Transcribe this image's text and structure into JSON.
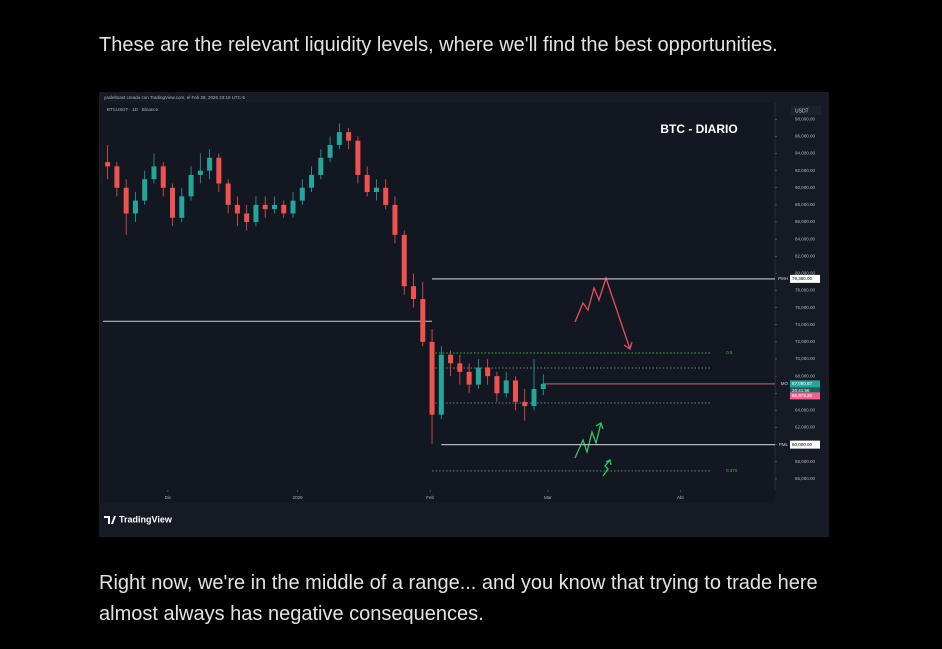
{
  "paragraphs": [
    "These are the relevant liquidity levels, where we'll find the best opportunities.",
    "Right now, we're in the middle of a range... and you know that trying to trade here almost always has negative consequences."
  ],
  "chart_data": {
    "type": "candlestick",
    "attribution": "yasleltoast creado con TradingView.com, el Feb 28, 2026 23:18 UTC-5",
    "symbol": "BTCUSDT · 1D · Binance",
    "currency": "USDT",
    "title": "BTC - DIARIO",
    "brand": "TradingView",
    "up_color": "#26a69a",
    "down_color": "#ef5350",
    "open": [
      93000,
      92500,
      90000,
      87000,
      88500,
      91000,
      92500,
      90000,
      86500,
      89000,
      91500,
      92000,
      93500,
      90500,
      88000,
      87000,
      86000,
      88000,
      87500,
      88000,
      87000,
      88500,
      90000,
      91500,
      93500,
      95000,
      96500,
      95500,
      91500,
      89500,
      90000,
      88000,
      84500,
      78500,
      77000,
      72000,
      63500,
      70500,
      69500,
      68500,
      67000,
      69000,
      68000,
      66000,
      67500,
      65000,
      64500,
      66500
    ],
    "high": [
      95000,
      93000,
      91000,
      89500,
      92000,
      94000,
      93000,
      90500,
      90000,
      92500,
      94000,
      94500,
      94000,
      91000,
      89000,
      88000,
      89000,
      89000,
      89000,
      88500,
      89500,
      91000,
      92500,
      94500,
      96000,
      97500,
      97000,
      96000,
      92500,
      91000,
      91000,
      89000,
      85000,
      80000,
      79000,
      73500,
      71500,
      71000,
      70500,
      69500,
      70000,
      70000,
      68500,
      68500,
      68000,
      66500,
      70000,
      68200
    ],
    "low": [
      91000,
      89000,
      84500,
      86000,
      88000,
      90500,
      89000,
      85500,
      86000,
      88500,
      90500,
      91000,
      89500,
      87000,
      85500,
      85000,
      85500,
      86500,
      87000,
      86500,
      86500,
      88000,
      89500,
      91000,
      93000,
      94500,
      94500,
      90500,
      89000,
      88500,
      87500,
      83500,
      77500,
      76000,
      71500,
      60100,
      63000,
      68000,
      67000,
      66000,
      66500,
      67000,
      65000,
      65500,
      64000,
      62800,
      64000,
      65800
    ],
    "close": [
      92500,
      90000,
      87000,
      88500,
      91000,
      92500,
      90000,
      86500,
      89000,
      91500,
      92000,
      93500,
      90500,
      88000,
      87000,
      86000,
      88000,
      87500,
      88000,
      87000,
      88500,
      90000,
      91500,
      93500,
      95000,
      96500,
      95500,
      91500,
      89500,
      90000,
      88000,
      84500,
      78500,
      77000,
      72000,
      63500,
      70500,
      69500,
      68500,
      67000,
      69000,
      68000,
      66000,
      67500,
      65000,
      64500,
      66500,
      67090.67
    ],
    "xlim": [
      -0.5,
      72
    ],
    "xticks": [
      {
        "value": 6.5,
        "label": "Dic"
      },
      {
        "value": 20.5,
        "label": "2026"
      },
      {
        "value": 34.8,
        "label": "Feb"
      },
      {
        "value": 47.5,
        "label": "Mar"
      },
      {
        "value": 61.8,
        "label": "Abr"
      }
    ],
    "ylim": [
      54700,
      99900
    ],
    "yticks": [
      {
        "value": 56000,
        "label": "56,000.00"
      },
      {
        "value": 58000,
        "label": "58,000.00"
      },
      {
        "value": 60000,
        "label": "60,000.00"
      },
      {
        "value": 62000,
        "label": "62,000.00"
      },
      {
        "value": 64000,
        "label": "64,000.00"
      },
      {
        "value": 66000,
        "label": "66,000.00"
      },
      {
        "value": 68000,
        "label": "68,000.00"
      },
      {
        "value": 70000,
        "label": "70,000.00"
      },
      {
        "value": 72000,
        "label": "72,000.00"
      },
      {
        "value": 74000,
        "label": "74,000.00"
      },
      {
        "value": 76000,
        "label": "76,000.00"
      },
      {
        "value": 78000,
        "label": "78,000.00"
      },
      {
        "value": 80000,
        "label": "80,000.00"
      },
      {
        "value": 82000,
        "label": "82,000.00"
      },
      {
        "value": 84000,
        "label": "84,000.00"
      },
      {
        "value": 86000,
        "label": "86,000.00"
      },
      {
        "value": 88000,
        "label": "88,000.00"
      },
      {
        "value": 90000,
        "label": "90,000.00"
      },
      {
        "value": 92000,
        "label": "92,000.00"
      },
      {
        "value": 94000,
        "label": "94,000.00"
      },
      {
        "value": 96000,
        "label": "96,000.00"
      },
      {
        "value": 98000,
        "label": "98,000.00"
      }
    ],
    "levels": [
      {
        "value": 74400,
        "color": "#b2b5be",
        "style": "solid",
        "range": [
          -0.5,
          35
        ]
      },
      {
        "name": "PMH",
        "value": 79360,
        "value_label": "79,360.00",
        "color": "#b2b5be",
        "style": "solid",
        "range": [
          35,
          72
        ]
      },
      {
        "name": "PML",
        "value": 60000,
        "value_label": "60,000.00",
        "color": "#b2b5be",
        "style": "solid",
        "range": [
          36,
          72
        ]
      },
      {
        "name": "0.5",
        "value": 70700,
        "color": "#4caf50",
        "style": "dotted",
        "range": [
          35,
          65
        ]
      },
      {
        "value": 68950,
        "color": "#787b86",
        "style": "dotted",
        "range": [
          35,
          65
        ]
      },
      {
        "value": 64860,
        "color": "#787b86",
        "style": "dotted",
        "range": [
          35,
          65
        ]
      },
      {
        "name": "0.375",
        "value": 56930,
        "color": "#4caf50",
        "style": "dotted",
        "range": [
          35,
          65
        ]
      },
      {
        "name": "MO",
        "value": 67090.67,
        "color": "#b2545c",
        "style": "solid",
        "range": [
          47,
          72
        ]
      }
    ],
    "last_price": [
      {
        "value": 67090.67,
        "label": "67,090.67",
        "color": "#26a69a",
        "countdown": "20:41:56"
      },
      {
        "value": 66973.26,
        "label": "66,973.26",
        "color": "#f06292"
      }
    ]
  }
}
